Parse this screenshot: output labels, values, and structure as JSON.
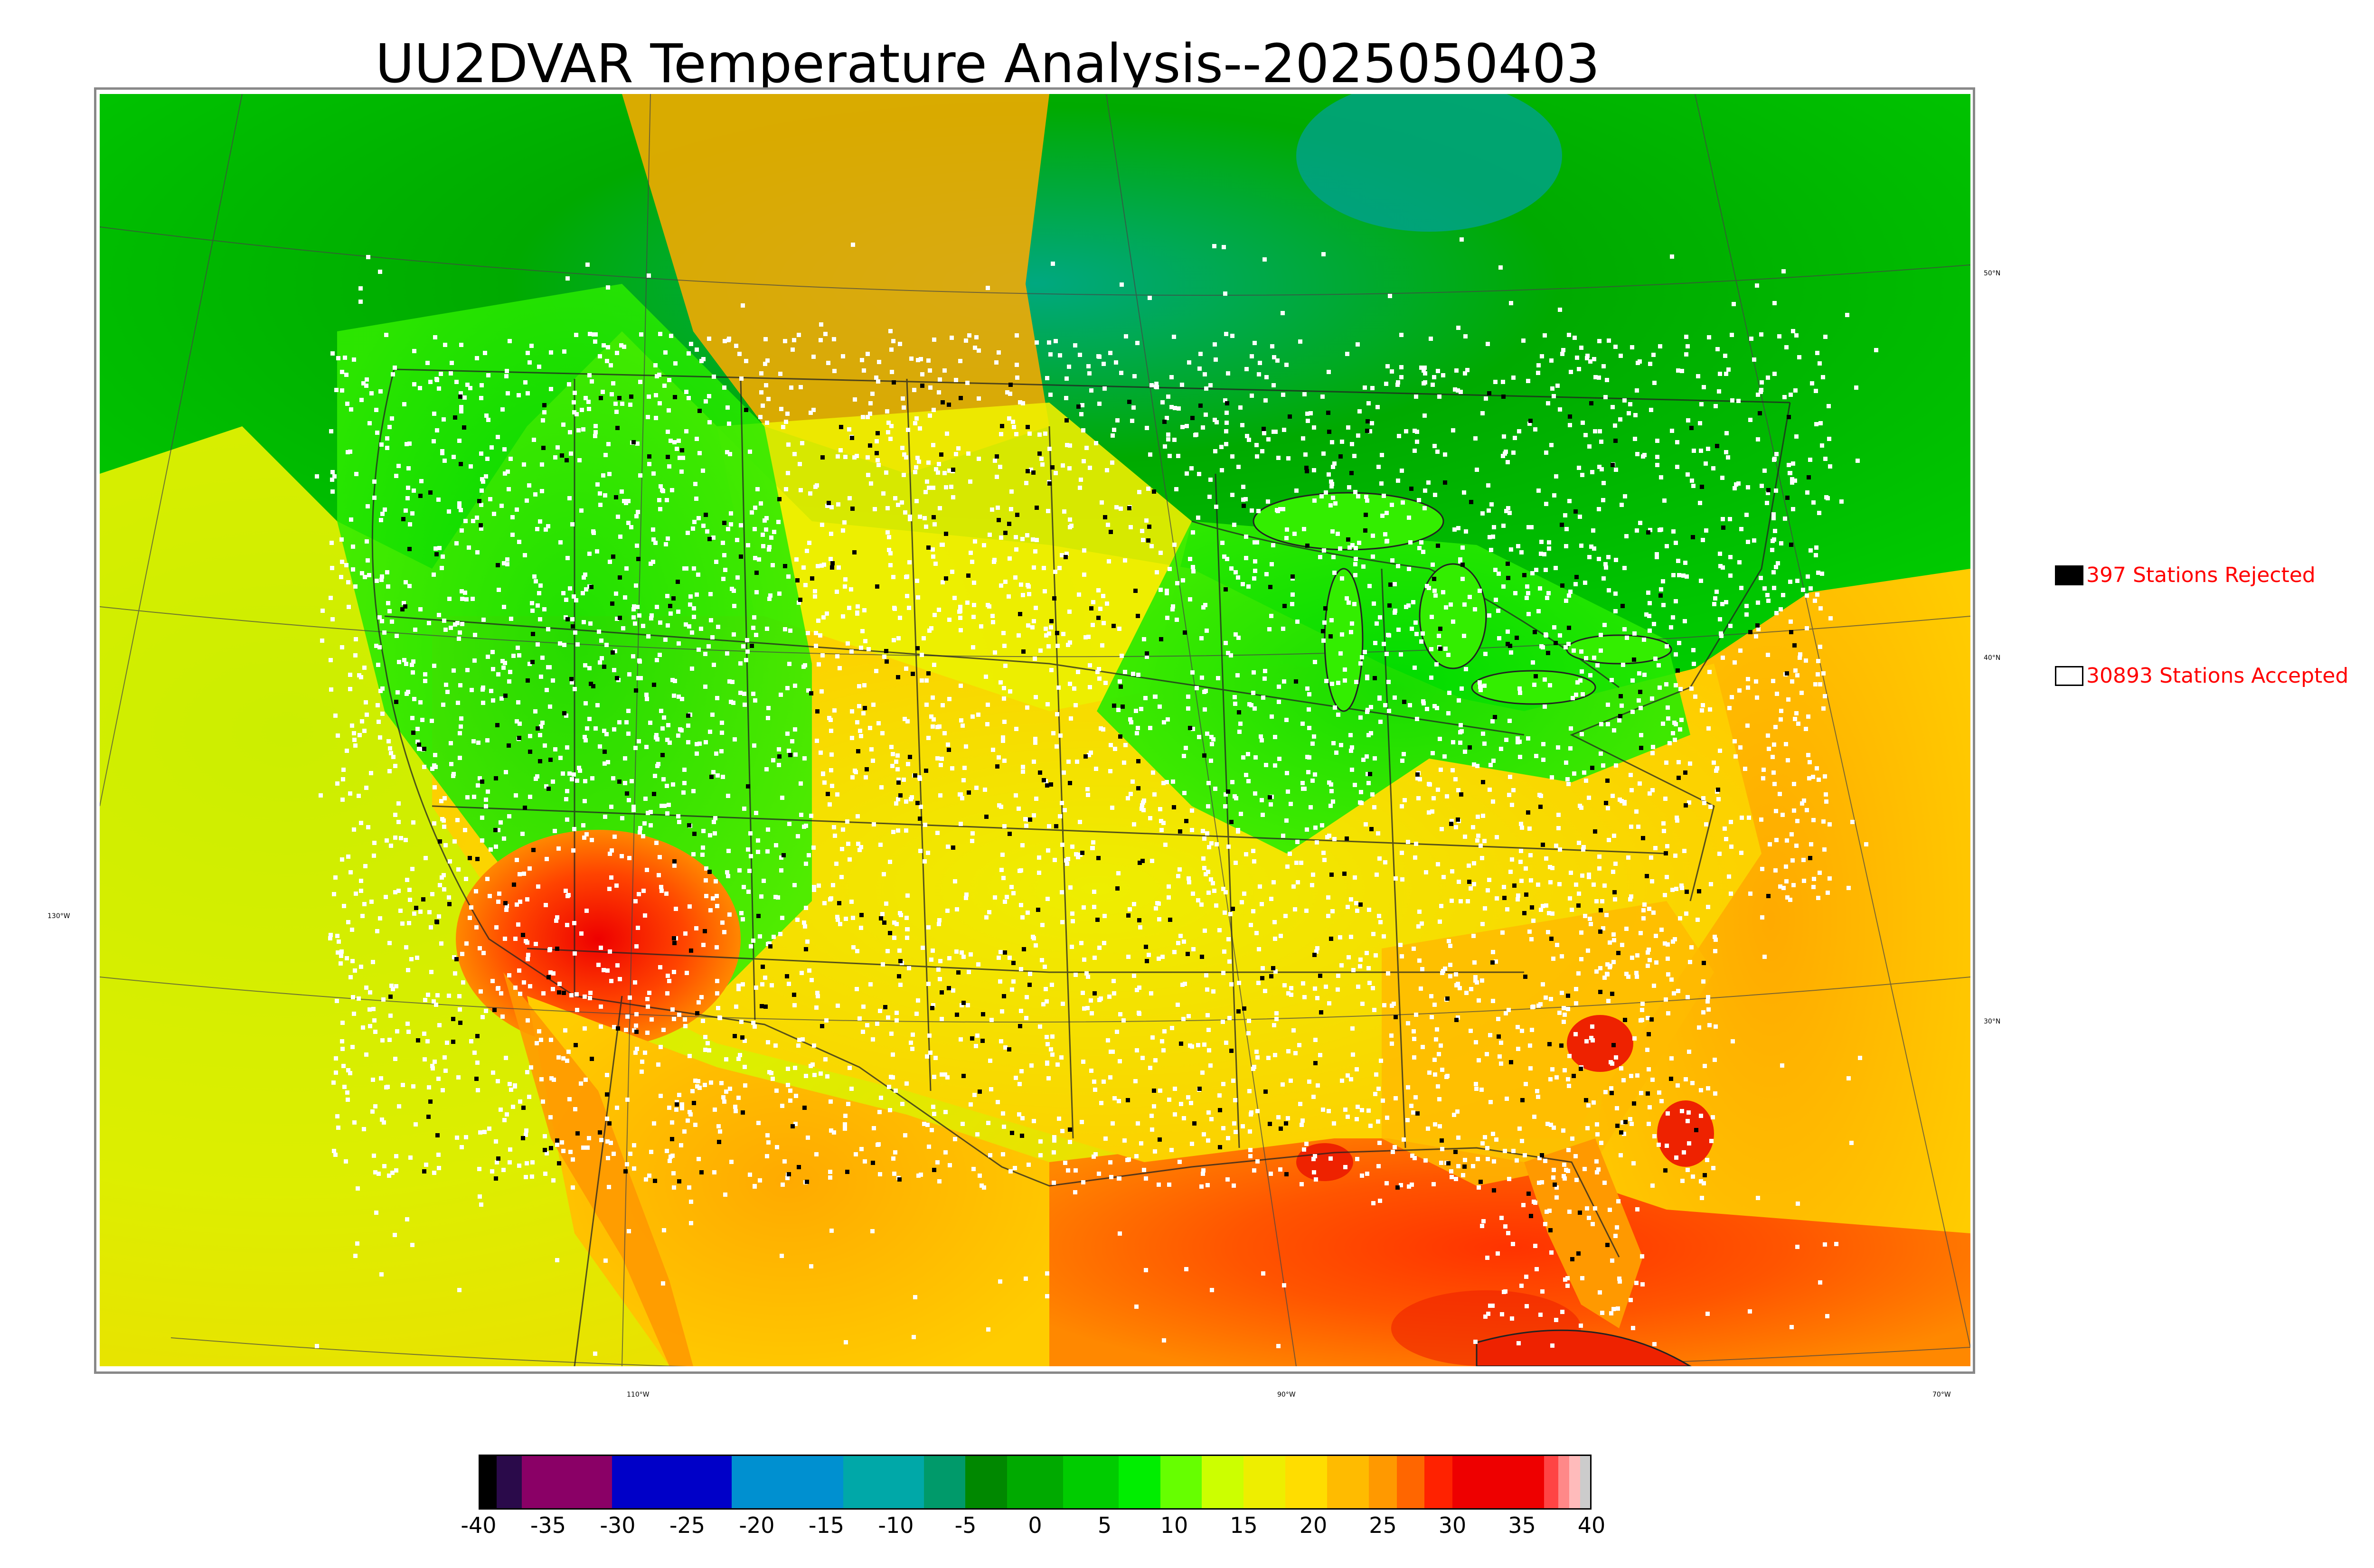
{
  "title": "UU2DVAR Temperature Analysis--2025050403",
  "map": {
    "latitude_labels": [
      "50°N",
      "40°N",
      "30°N"
    ],
    "longitude_labels": [
      "130°W",
      "110°W",
      "90°W",
      "70°W"
    ]
  },
  "legend": {
    "rejected": {
      "label": "397 Stations Rejected",
      "swatch_color": "#000000"
    },
    "accepted": {
      "label": "30893 Stations Accepted",
      "swatch_color": "#ffffff"
    }
  },
  "colorbar": {
    "ticks": [
      "-40",
      "-35",
      "-30",
      "-25",
      "-20",
      "-15",
      "-10",
      "-5",
      "0",
      "5",
      "10",
      "15",
      "20",
      "25",
      "30",
      "35",
      "40"
    ],
    "min": -40,
    "max": 40,
    "segments": [
      {
        "from": -40,
        "to": -38.7,
        "color": "#000000"
      },
      {
        "from": -38.7,
        "to": -36.9,
        "color": "#2a0a4a"
      },
      {
        "from": -36.9,
        "to": -30.4,
        "color": "#8a0066"
      },
      {
        "from": -30.4,
        "to": -21.8,
        "color": "#0000c8"
      },
      {
        "from": -21.8,
        "to": -13.8,
        "color": "#0090d0"
      },
      {
        "from": -13.8,
        "to": -8,
        "color": "#00a8a8"
      },
      {
        "from": -8,
        "to": -5,
        "color": "#009a6a"
      },
      {
        "from": -5,
        "to": -2,
        "color": "#008800"
      },
      {
        "from": -2,
        "to": 2,
        "color": "#00aa00"
      },
      {
        "from": 2,
        "to": 6,
        "color": "#00cc00"
      },
      {
        "from": 6,
        "to": 9,
        "color": "#00ee00"
      },
      {
        "from": 9,
        "to": 12,
        "color": "#66ff00"
      },
      {
        "from": 12,
        "to": 15,
        "color": "#ccff00"
      },
      {
        "from": 15,
        "to": 18,
        "color": "#eeee00"
      },
      {
        "from": 18,
        "to": 21,
        "color": "#ffdd00"
      },
      {
        "from": 21,
        "to": 24,
        "color": "#ffbb00"
      },
      {
        "from": 24,
        "to": 26,
        "color": "#ff9900"
      },
      {
        "from": 26,
        "to": 28,
        "color": "#ff6600"
      },
      {
        "from": 28,
        "to": 30,
        "color": "#ff2200"
      },
      {
        "from": 30,
        "to": 36.6,
        "color": "#ee0000"
      },
      {
        "from": 36.6,
        "to": 37.6,
        "color": "#ff4444"
      },
      {
        "from": 37.6,
        "to": 38.4,
        "color": "#ff8888"
      },
      {
        "from": 38.4,
        "to": 39.2,
        "color": "#ffbbbb"
      },
      {
        "from": 39.2,
        "to": 40,
        "color": "#cccccc"
      }
    ]
  },
  "colors": {
    "ocean_pacific": "#ddee00",
    "ocean_gulf": "#ff6a00",
    "canada_north": "#00b000",
    "station_accepted": "#ffffff",
    "station_rejected": "#000000"
  }
}
